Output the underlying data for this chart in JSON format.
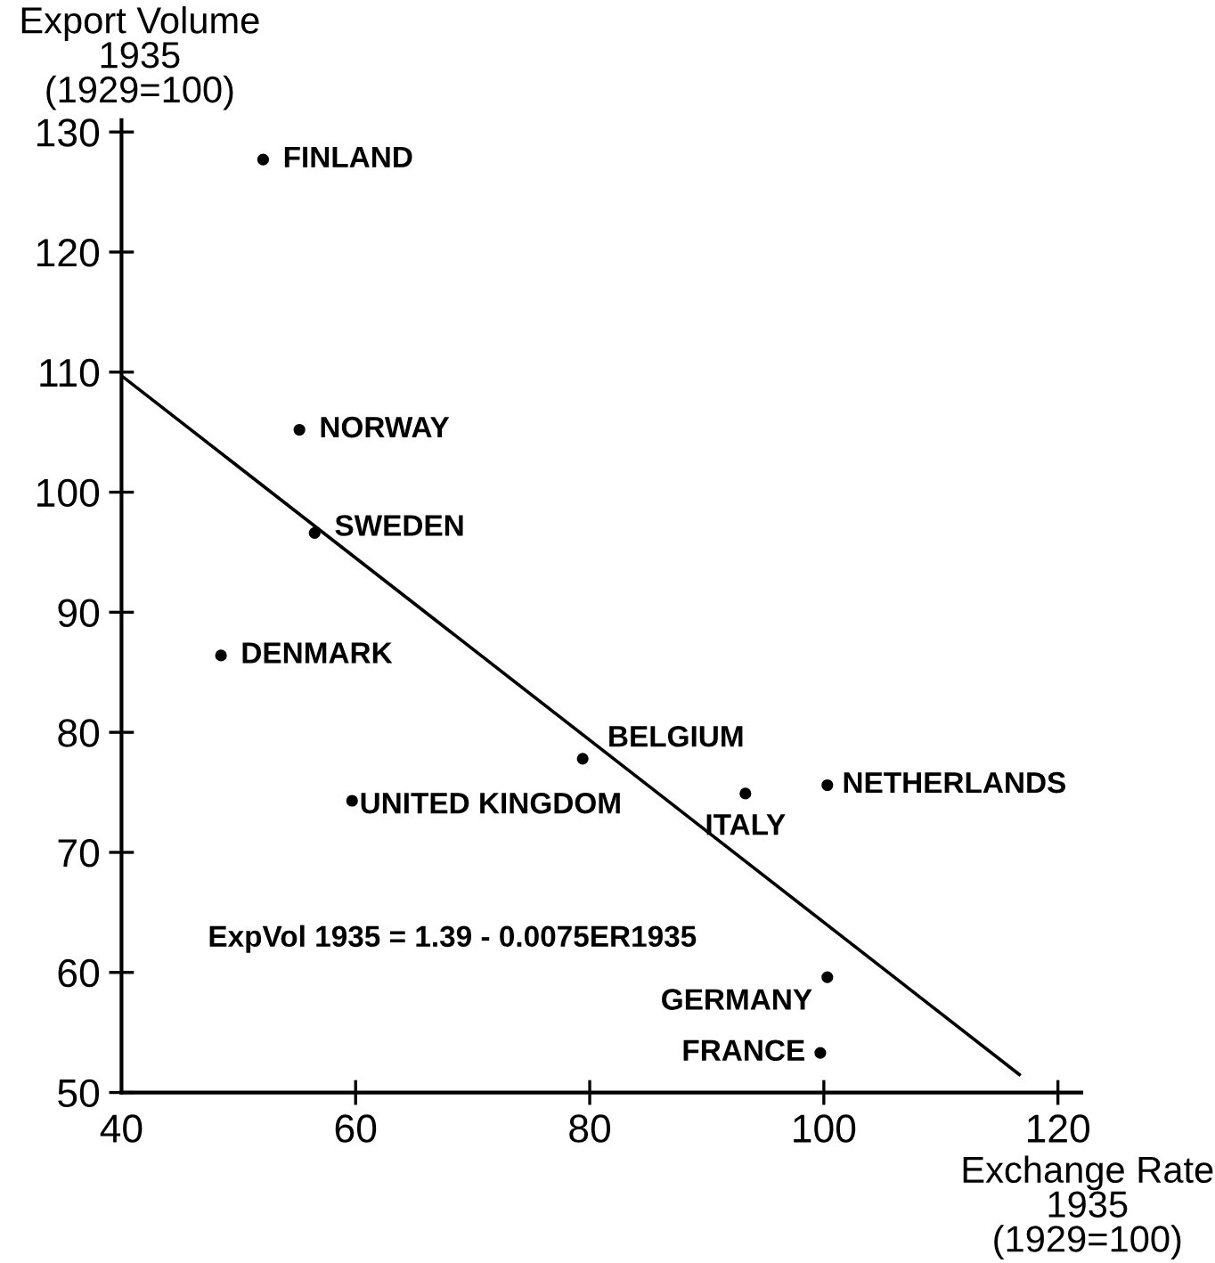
{
  "chart_data": {
    "type": "scatter",
    "xlabel": "Exchange Rate\n1935\n(1929=100)",
    "ylabel": "Export Volume\n1935\n(1929=100)",
    "series": [
      {
        "color": "#000000",
        "marker": "circle",
        "x": [
          52.1,
          55.2,
          56.5,
          48.5,
          59.7,
          79.4,
          93.3,
          100.3,
          100.3,
          99.7
        ],
        "values": [
          127.7,
          105.2,
          96.6,
          86.4,
          74.3,
          77.8,
          74.9,
          75.6,
          59.6,
          53.3
        ]
      },
      {
        "type": "line",
        "color": "#000000",
        "marker": "none",
        "line_style": "solid",
        "x": [
          40,
          116.7
        ],
        "values": [
          109.7,
          51.5
        ]
      }
    ],
    "annotations": [
      {
        "text": "FINLAND",
        "x": 52.1,
        "y": 127.7
      },
      {
        "text": "NORWAY",
        "x": 55.2,
        "y": 105.2
      },
      {
        "text": "SWEDEN",
        "x": 56.5,
        "y": 96.6
      },
      {
        "text": "DENMARK",
        "x": 48.5,
        "y": 86.4
      },
      {
        "text": "UNITED KINGDOM",
        "x": 59.7,
        "y": 74.3
      },
      {
        "text": "BELGIUM",
        "x": 79.4,
        "y": 77.8
      },
      {
        "text": "ITALY",
        "x": 93.3,
        "y": 74.9
      },
      {
        "text": "NETHERLANDS",
        "x": 100.3,
        "y": 75.6
      },
      {
        "text": "GERMANY",
        "x": 100.3,
        "y": 59.6
      },
      {
        "text": "FRANCE",
        "x": 99.7,
        "y": 53.3
      },
      "ExpVol 1935 = 1.39 - 0.0075ER1935"
    ],
    "xlim": [
      40,
      122
    ],
    "ylim": [
      50,
      131
    ],
    "xticks": [
      40,
      60,
      80,
      100,
      120
    ],
    "yticks": [
      50,
      60,
      70,
      80,
      90,
      100,
      110,
      120,
      130
    ],
    "grid": false,
    "legend": false
  }
}
